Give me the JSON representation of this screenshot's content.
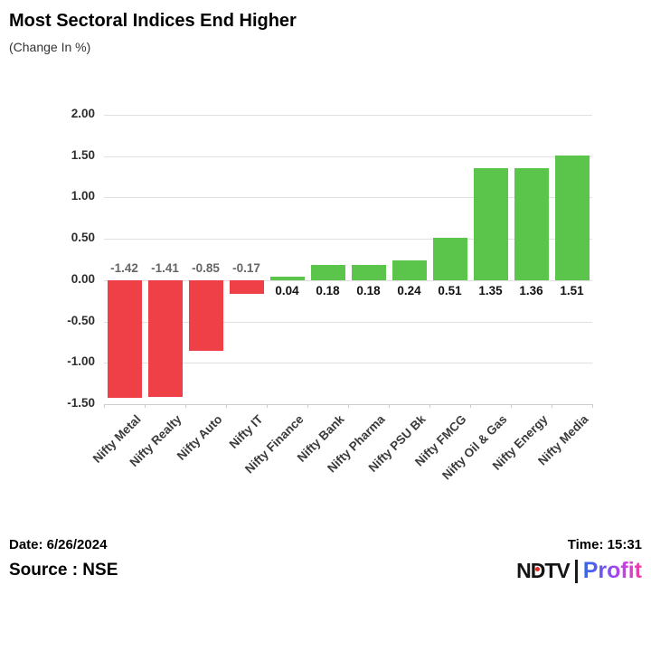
{
  "chart_data": {
    "type": "bar",
    "title": "Most Sectoral Indices End Higher",
    "subtitle": "(Change In %)",
    "categories": [
      "Nifty Metal",
      "Nifty Realty",
      "Nifty Auto",
      "Nifty IT",
      "Nifty Finance",
      "Nifty Bank",
      "Nifty Pharma",
      "Nifty PSU Bk",
      "Nifty FMCG",
      "Nifty Oil & Gas",
      "Nifty Energy",
      "Nifty Media"
    ],
    "values": [
      -1.42,
      -1.41,
      -0.85,
      -0.17,
      0.04,
      0.18,
      0.18,
      0.24,
      0.51,
      1.35,
      1.36,
      1.51
    ],
    "value_labels": [
      "-1.42",
      "-1.41",
      "-0.85",
      "-0.17",
      "0.04",
      "0.18",
      "0.18",
      "0.24",
      "0.51",
      "1.35",
      "1.36",
      "1.51"
    ],
    "xlabel": "",
    "ylabel": "",
    "ylim": [
      -1.5,
      2.0
    ],
    "yticks": [
      "2.00",
      "1.50",
      "1.00",
      "0.50",
      "0.00",
      "-0.50",
      "-1.00",
      "-1.50"
    ],
    "grid": true,
    "legend": "none",
    "positive_color": "#5bc44b",
    "negative_color": "#ef4048",
    "negative_label_color": "#666666",
    "positive_label_color": "#111111"
  },
  "footer": {
    "date_label": "Date: 6/26/2024",
    "source_label": "Source : NSE",
    "time_label": "Time: 15:31",
    "logo_ndtv": "NDTV",
    "logo_profit": "Profit"
  }
}
